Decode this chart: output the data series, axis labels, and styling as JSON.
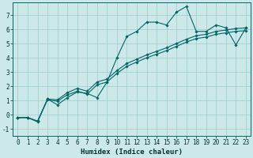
{
  "xlabel": "Humidex (Indice chaleur)",
  "bg_color": "#cce8e8",
  "grid_color": "#99cccc",
  "line_color": "#006666",
  "xlim": [
    -0.5,
    23.5
  ],
  "ylim": [
    -1.5,
    7.9
  ],
  "yticks": [
    -1,
    0,
    1,
    2,
    3,
    4,
    5,
    6,
    7
  ],
  "xticks": [
    0,
    1,
    2,
    3,
    4,
    5,
    6,
    7,
    8,
    9,
    10,
    11,
    12,
    13,
    14,
    15,
    16,
    17,
    18,
    19,
    20,
    21,
    22,
    23
  ],
  "series1_x": [
    0,
    1,
    2,
    3,
    4,
    5,
    6,
    7,
    8,
    9,
    10,
    11,
    12,
    13,
    14,
    15,
    16,
    17,
    18,
    19,
    20,
    21,
    22,
    23
  ],
  "series1_y": [
    -0.2,
    -0.2,
    -0.5,
    1.1,
    0.7,
    1.2,
    1.6,
    1.5,
    1.2,
    2.3,
    4.0,
    5.5,
    5.85,
    6.5,
    6.5,
    6.3,
    7.2,
    7.6,
    5.85,
    5.85,
    6.3,
    6.1,
    4.9,
    6.1
  ],
  "series2_x": [
    0,
    1,
    2,
    3,
    4,
    5,
    6,
    7,
    8,
    9,
    10,
    11,
    12,
    13,
    14,
    15,
    16,
    17,
    18,
    19,
    20,
    21,
    22,
    23
  ],
  "series2_y": [
    -0.2,
    -0.2,
    -0.45,
    1.1,
    1.05,
    1.55,
    1.85,
    1.65,
    2.3,
    2.5,
    3.1,
    3.6,
    3.9,
    4.2,
    4.45,
    4.7,
    5.0,
    5.3,
    5.55,
    5.65,
    5.85,
    5.95,
    6.05,
    6.1
  ],
  "series3_x": [
    0,
    1,
    2,
    3,
    4,
    5,
    6,
    7,
    8,
    9,
    10,
    11,
    12,
    13,
    14,
    15,
    16,
    17,
    18,
    19,
    20,
    21,
    22,
    23
  ],
  "series3_y": [
    -0.2,
    -0.2,
    -0.45,
    1.05,
    0.95,
    1.4,
    1.65,
    1.45,
    2.1,
    2.3,
    2.9,
    3.4,
    3.7,
    4.0,
    4.25,
    4.5,
    4.8,
    5.1,
    5.35,
    5.45,
    5.65,
    5.75,
    5.85,
    5.9
  ],
  "marker": "D",
  "marker_size": 1.8,
  "linewidth": 0.8,
  "tick_fontsize": 5.5,
  "label_fontsize": 6.5
}
